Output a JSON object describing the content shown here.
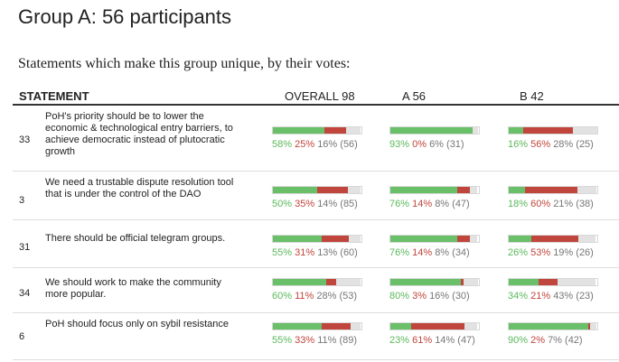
{
  "title": "Group A: 56 participants",
  "subtitle": "Statements which make this group unique, by their votes:",
  "header": {
    "statement": "STATEMENT",
    "overall": "OVERALL 98",
    "a": "A 56",
    "b": "B 42"
  },
  "colors": {
    "agree": "#6abf69",
    "disagree": "#c0463d",
    "pass": "#e2e2e2"
  },
  "rows": [
    {
      "id": "33",
      "text": "PoH's priority should be to lower the economic & technological entry barriers, to achieve democratic instead of plutocratic growth",
      "overall": {
        "agree": "58%",
        "disagree": "25%",
        "pass": "16%",
        "count": "(56)",
        "agree_v": 58,
        "disagree_v": 25,
        "pass_v": 16
      },
      "a": {
        "agree": "93%",
        "disagree": "0%",
        "pass": "6%",
        "count": "(31)",
        "agree_v": 93,
        "disagree_v": 0,
        "pass_v": 6
      },
      "b": {
        "agree": "16%",
        "disagree": "56%",
        "pass": "28%",
        "count": "(25)",
        "agree_v": 16,
        "disagree_v": 56,
        "pass_v": 28
      }
    },
    {
      "id": "3",
      "text": "We need a trustable dispute resolution tool that is under the control of the DAO",
      "overall": {
        "agree": "50%",
        "disagree": "35%",
        "pass": "14%",
        "count": "(85)",
        "agree_v": 50,
        "disagree_v": 35,
        "pass_v": 14
      },
      "a": {
        "agree": "76%",
        "disagree": "14%",
        "pass": "8%",
        "count": "(47)",
        "agree_v": 76,
        "disagree_v": 14,
        "pass_v": 8
      },
      "b": {
        "agree": "18%",
        "disagree": "60%",
        "pass": "21%",
        "count": "(38)",
        "agree_v": 18,
        "disagree_v": 60,
        "pass_v": 21
      }
    },
    {
      "id": "31",
      "text": "There should be official telegram groups.",
      "overall": {
        "agree": "55%",
        "disagree": "31%",
        "pass": "13%",
        "count": "(60)",
        "agree_v": 55,
        "disagree_v": 31,
        "pass_v": 13
      },
      "a": {
        "agree": "76%",
        "disagree": "14%",
        "pass": "8%",
        "count": "(34)",
        "agree_v": 76,
        "disagree_v": 14,
        "pass_v": 8
      },
      "b": {
        "agree": "26%",
        "disagree": "53%",
        "pass": "19%",
        "count": "(26)",
        "agree_v": 26,
        "disagree_v": 53,
        "pass_v": 19
      }
    },
    {
      "id": "34",
      "text": "We should work to make the community more popular.",
      "overall": {
        "agree": "60%",
        "disagree": "11%",
        "pass": "28%",
        "count": "(53)",
        "agree_v": 60,
        "disagree_v": 11,
        "pass_v": 28
      },
      "a": {
        "agree": "80%",
        "disagree": "3%",
        "pass": "16%",
        "count": "(30)",
        "agree_v": 80,
        "disagree_v": 3,
        "pass_v": 16
      },
      "b": {
        "agree": "34%",
        "disagree": "21%",
        "pass": "43%",
        "count": "(23)",
        "agree_v": 34,
        "disagree_v": 21,
        "pass_v": 43
      }
    },
    {
      "id": "6",
      "text": "PoH should focus only on sybil resistance",
      "overall": {
        "agree": "55%",
        "disagree": "33%",
        "pass": "11%",
        "count": "(89)",
        "agree_v": 55,
        "disagree_v": 33,
        "pass_v": 11
      },
      "a": {
        "agree": "23%",
        "disagree": "61%",
        "pass": "14%",
        "count": "(47)",
        "agree_v": 23,
        "disagree_v": 61,
        "pass_v": 14
      },
      "b": {
        "agree": "90%",
        "disagree": "2%",
        "pass": "7%",
        "count": "(42)",
        "agree_v": 90,
        "disagree_v": 2,
        "pass_v": 7
      }
    }
  ]
}
